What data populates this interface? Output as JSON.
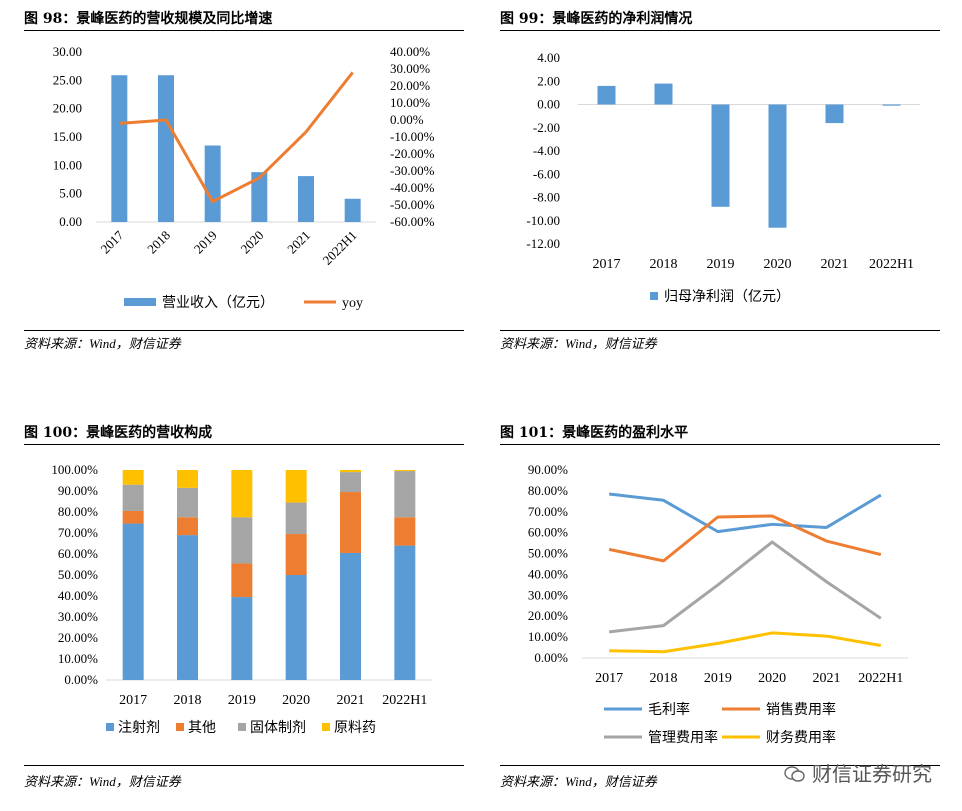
{
  "watermark": "财信证券研究",
  "chart_data": [
    {
      "id": "fig98",
      "figure_title": "图 98：景峰医药的营收规模及同比增速",
      "type": "bar",
      "categories": [
        "2017",
        "2018",
        "2019",
        "2020",
        "2021",
        "2022H1"
      ],
      "series": [
        {
          "name": "营业收入（亿元）",
          "type": "bar",
          "axis": "left",
          "color": "#5B9BD5",
          "values": [
            25.9,
            25.9,
            13.5,
            8.8,
            8.1,
            4.1
          ]
        },
        {
          "name": "yoy",
          "type": "line",
          "axis": "right",
          "color": "#ED7D31",
          "values": [
            -2.0,
            0.0,
            -48.0,
            -34.0,
            -7.0,
            28.0
          ]
        }
      ],
      "ylim_left": [
        0,
        30
      ],
      "ytick_step_left": 5,
      "ytick_decimals_left": 2,
      "ylim_right": [
        -60,
        40
      ],
      "ytick_step_right": 10,
      "ytick_format_right": "percent",
      "xtick_rotated": true,
      "legend_position": "bottom",
      "source": "资料来源：Wind，财信证券"
    },
    {
      "id": "fig99",
      "figure_title": "图 99：景峰医药的净利润情况",
      "type": "bar",
      "categories": [
        "2017",
        "2018",
        "2019",
        "2020",
        "2021",
        "2022H1"
      ],
      "series": [
        {
          "name": "归母净利润（亿元）",
          "color": "#5B9BD5",
          "values": [
            1.6,
            1.8,
            -8.8,
            -10.6,
            -1.6,
            -0.1
          ]
        }
      ],
      "ylim": [
        -12,
        4
      ],
      "ytick_step": 2,
      "ytick_decimals": 2,
      "legend_position": "bottom",
      "source": "资料来源：Wind，财信证券"
    },
    {
      "id": "fig100",
      "figure_title": "图 100：景峰医药的营收构成",
      "type": "bar",
      "stacked": true,
      "categories": [
        "2017",
        "2018",
        "2019",
        "2020",
        "2021",
        "2022H1"
      ],
      "series": [
        {
          "name": "注射剂",
          "color": "#5B9BD5",
          "values": [
            74.5,
            69.0,
            39.5,
            50.0,
            60.5,
            64.0
          ]
        },
        {
          "name": "其他",
          "color": "#ED7D31",
          "values": [
            6.0,
            8.5,
            16.0,
            19.5,
            29.0,
            13.5
          ]
        },
        {
          "name": "固体制剂",
          "color": "#A5A5A5",
          "values": [
            12.5,
            14.0,
            22.0,
            15.0,
            9.5,
            22.0
          ]
        },
        {
          "name": "原料药",
          "color": "#FFC000",
          "values": [
            7.0,
            8.5,
            22.5,
            15.5,
            1.0,
            0.5
          ]
        }
      ],
      "ylim": [
        0,
        100
      ],
      "ytick_step": 10,
      "ytick_format": "percent",
      "legend_position": "bottom",
      "source": "资料来源：Wind，财信证券"
    },
    {
      "id": "fig101",
      "figure_title": "图 101：景峰医药的盈利水平",
      "type": "line",
      "categories": [
        "2017",
        "2018",
        "2019",
        "2020",
        "2021",
        "2022H1"
      ],
      "series": [
        {
          "name": "毛利率",
          "color": "#5B9BD5",
          "values": [
            78.5,
            75.5,
            60.5,
            64.0,
            62.5,
            78.0
          ]
        },
        {
          "name": "销售费用率",
          "color": "#ED7D31",
          "values": [
            52.0,
            46.5,
            67.5,
            68.0,
            56.0,
            49.5
          ]
        },
        {
          "name": "管理费用率",
          "color": "#A5A5A5",
          "values": [
            12.5,
            15.5,
            35.0,
            55.5,
            36.5,
            19.0
          ]
        },
        {
          "name": "财务费用率",
          "color": "#FFC000",
          "values": [
            3.5,
            3.0,
            7.0,
            12.0,
            10.5,
            6.0
          ]
        }
      ],
      "ylim": [
        0,
        90
      ],
      "ytick_step": 10,
      "ytick_format": "percent",
      "legend_position": "bottom",
      "source": "资料来源：Wind，财信证券"
    }
  ]
}
